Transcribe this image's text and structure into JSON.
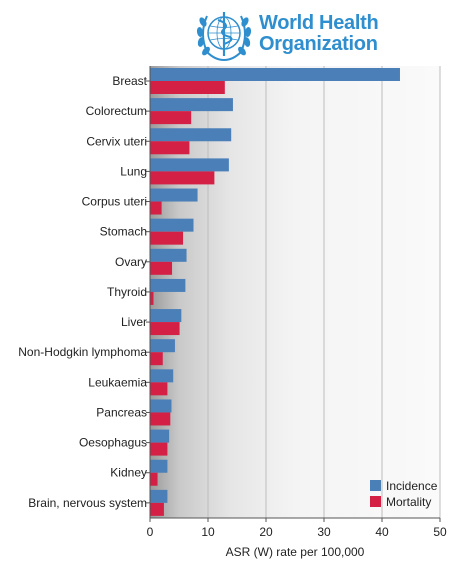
{
  "logo": {
    "line1": "World Health",
    "line2": "Organization",
    "color": "#2f8fce"
  },
  "chart_data": {
    "type": "bar",
    "orientation": "horizontal",
    "categories": [
      "Breast",
      "Colorectum",
      "Cervix uteri",
      "Lung",
      "Corpus uteri",
      "Stomach",
      "Ovary",
      "Thyroid",
      "Liver",
      "Non-Hodgkin lymphoma",
      "Leukaemia",
      "Pancreas",
      "Oesophagus",
      "Kidney",
      "Brain, nervous system"
    ],
    "series": [
      {
        "name": "Incidence",
        "color": "#4a7fb8",
        "values": [
          43.1,
          14.3,
          14.0,
          13.6,
          8.2,
          7.5,
          6.3,
          6.1,
          5.4,
          4.3,
          4.0,
          3.7,
          3.3,
          3.0,
          3.0
        ]
      },
      {
        "name": "Mortality",
        "color": "#d42045",
        "values": [
          12.9,
          7.1,
          6.8,
          11.1,
          2.0,
          5.7,
          3.8,
          0.6,
          5.1,
          2.2,
          3.0,
          3.5,
          3.0,
          1.3,
          2.4
        ]
      }
    ],
    "xlabel": "ASR (W) rate per 100,000",
    "ylabel": "",
    "xlim": [
      0,
      50
    ],
    "xticks": [
      0,
      10,
      20,
      30,
      40,
      50
    ],
    "grid": true,
    "legend_position": "bottom-right"
  }
}
